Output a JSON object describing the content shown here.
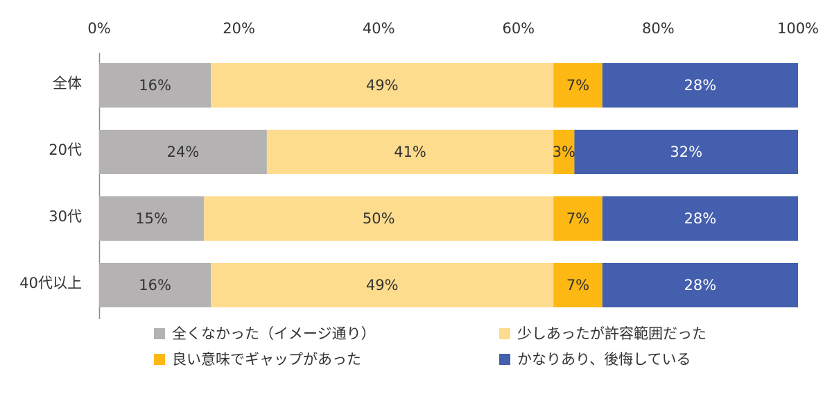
{
  "chart_data": {
    "type": "bar",
    "orientation": "horizontal",
    "stacked": true,
    "percent_stacked": true,
    "xlim": [
      0,
      100
    ],
    "x_ticks": [
      "0%",
      "20%",
      "40%",
      "60%",
      "80%",
      "100%"
    ],
    "x_axis_position": "top",
    "grid": false,
    "legend_position": "bottom",
    "categories": [
      "全体",
      "20代",
      "30代",
      "40代以上"
    ],
    "series": [
      {
        "name": "全くなかった（イメージ通り）",
        "color": "#B5B2B4",
        "values": [
          16,
          24,
          15,
          16
        ],
        "labels": [
          "16%",
          "24%",
          "15%",
          "16%"
        ],
        "label_color": "#333333"
      },
      {
        "name": "少しあったが許容範囲だった",
        "color": "#FEDC8D",
        "values": [
          49,
          41,
          50,
          49
        ],
        "labels": [
          "49%",
          "41%",
          "50%",
          "49%"
        ],
        "label_color": "#333333"
      },
      {
        "name": "良い意味でギャップがあった",
        "color": "#FDB813",
        "values": [
          7,
          3,
          7,
          7
        ],
        "labels": [
          "7%",
          "3%",
          "7%",
          "7%"
        ],
        "label_color": "#333333"
      },
      {
        "name": "かなりあり、後悔している",
        "color": "#445FAE",
        "values": [
          28,
          32,
          28,
          28
        ],
        "labels": [
          "28%",
          "32%",
          "28%",
          "28%"
        ],
        "label_color": "#ffffff"
      }
    ]
  }
}
